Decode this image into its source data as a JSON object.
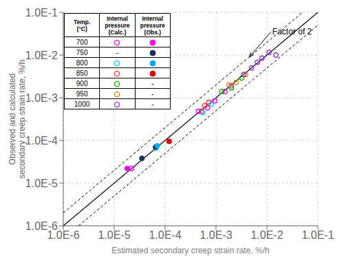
{
  "chart_data": {
    "type": "scatter",
    "xlabel": "Estimated secondary creep strain rate, %/h",
    "ylabel": "Observed and calculated\nsecondary creep strain rate, %/h",
    "log": true,
    "grid": true,
    "xlim": [
      1e-06,
      0.1
    ],
    "ylim": [
      1e-06,
      0.1
    ],
    "xticks": [
      {
        "value": 1e-06,
        "label": "1.0E-6"
      },
      {
        "value": 1e-05,
        "label": "1.0E-5"
      },
      {
        "value": 0.0001,
        "label": "1.0E-4"
      },
      {
        "value": 0.001,
        "label": "1.0E-3"
      },
      {
        "value": 0.01,
        "label": "1.0E-2"
      },
      {
        "value": 0.1,
        "label": "1.0E-1"
      }
    ],
    "yticks": [
      {
        "value": 1e-06,
        "label": "1.0E-6"
      },
      {
        "value": 1e-05,
        "label": "1.0E-5"
      },
      {
        "value": 0.0001,
        "label": "1.0E-4"
      },
      {
        "value": 0.001,
        "label": "1.0E-3"
      },
      {
        "value": 0.01,
        "label": "1.0E-2"
      },
      {
        "value": 0.1,
        "label": "1.0E-1"
      }
    ],
    "series": [
      {
        "type": "line",
        "line_style": "solid",
        "color": "#000000",
        "x": [
          1e-06,
          0.1
        ],
        "values": [
          1e-06,
          0.1
        ]
      },
      {
        "type": "line",
        "line_style": "dashed",
        "color": "#000000",
        "x": [
          1e-06,
          0.05
        ],
        "values": [
          2e-06,
          0.1
        ]
      },
      {
        "type": "line",
        "line_style": "dashed",
        "color": "#000000",
        "x": [
          2e-06,
          0.1
        ],
        "values": [
          1e-06,
          0.05
        ]
      },
      {
        "type": "scatter",
        "marker": "circle_open",
        "x": [
          2.2e-05,
          6.5e-05,
          0.00052,
          0.0006,
          0.00072,
          0.00055,
          0.0008,
          0.00045,
          0.00068,
          0.00095,
          0.0015,
          0.002,
          0.0013,
          0.002,
          0.0032,
          0.0018,
          0.0025,
          0.0038,
          0.0035,
          0.005,
          0.0065,
          0.008,
          0.011,
          0.015
        ],
        "values": [
          2.2e-05,
          6.5e-05,
          0.00048,
          0.00065,
          0.00078,
          0.00045,
          0.0007,
          0.00048,
          0.00058,
          0.00085,
          0.0014,
          0.0019,
          0.0014,
          0.0017,
          0.0029,
          0.002,
          0.0023,
          0.0035,
          0.0035,
          0.005,
          0.0068,
          0.0085,
          0.0115,
          0.01
        ],
        "colors": [
          "#FF00FF",
          "#00CCFF",
          "#FF3333",
          "#FF3333",
          "#FF3333",
          "#00CCFF",
          "#00CCFF",
          "#FF00FF",
          "#FF00FF",
          "#FF00FF",
          "#FF00FF",
          "#FF00FF",
          "#00BB00",
          "#00BB00",
          "#00BB00",
          "#CC8800",
          "#CC8800",
          "#CC8800",
          "#9933CC",
          "#9933CC",
          "#9933CC",
          "#9933CC",
          "#9933CC",
          "#9933CC"
        ]
      },
      {
        "type": "scatter",
        "marker": "circle",
        "x": [
          1.8e-05,
          3.5e-05,
          6.5e-05,
          7e-05,
          0.00012
        ],
        "values": [
          2.2e-05,
          3.8e-05,
          7e-05,
          7.5e-05,
          9.5e-05
        ],
        "colors": [
          "#FF00FF",
          "#1A2F5A",
          "#1A2F5A",
          "#00AAFF",
          "#DD0000"
        ]
      }
    ],
    "annotations": [
      {
        "text": "Factor of 2",
        "x": 0.012,
        "y": 0.035,
        "arrow_x": 0.0045,
        "arrow_y": 0.009
      }
    ],
    "legend_table": {
      "headers": [
        "Temp.\n(°C)",
        "Internal\npressure\n(Calc.)",
        "Internal\npressure\n(Obs.)"
      ],
      "rows": [
        {
          "temp": "700",
          "calc": "#FF00FF",
          "obs": "#FF00FF"
        },
        {
          "temp": "750",
          "calc": "-",
          "obs": "#1A2F5A"
        },
        {
          "temp": "800",
          "calc": "#00CCFF",
          "obs": "#00AAFF"
        },
        {
          "temp": "850",
          "calc": "#FF3333",
          "obs": "#DD0000"
        },
        {
          "temp": "900",
          "calc": "#00BB00",
          "obs": "-"
        },
        {
          "temp": "950",
          "calc": "#CC8800",
          "obs": "-"
        },
        {
          "temp": "1000",
          "calc": "#9933CC",
          "obs": "-"
        }
      ]
    }
  }
}
